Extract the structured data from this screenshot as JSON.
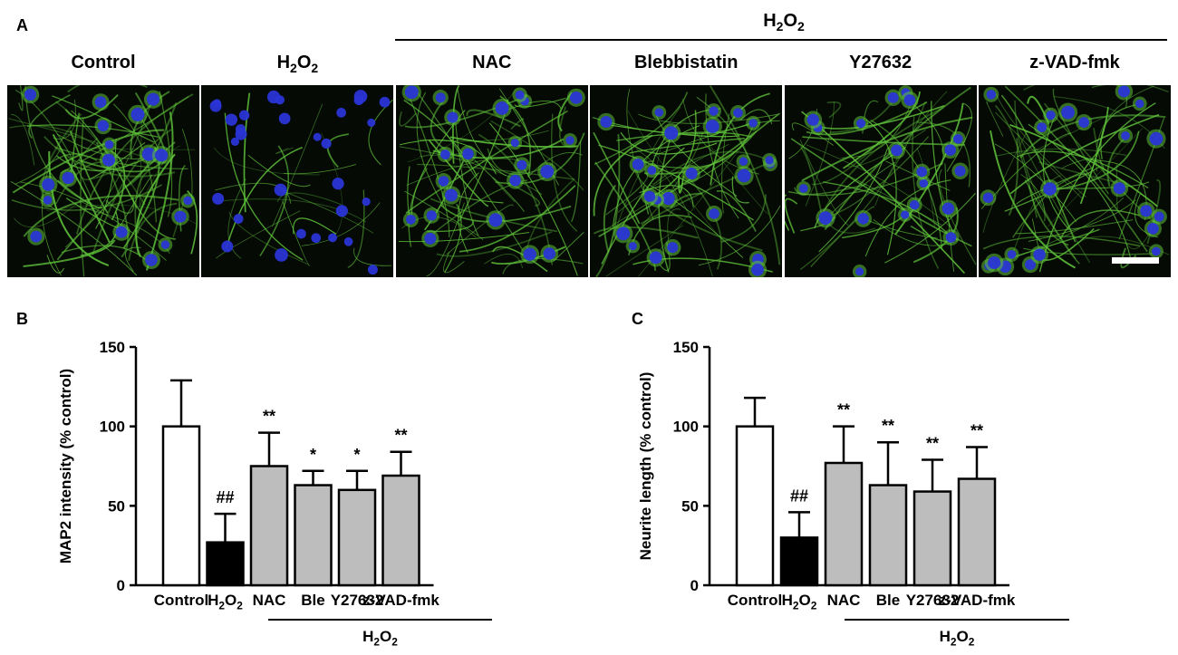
{
  "panel_a": {
    "letter": "A",
    "group_label": "H2O2",
    "images": [
      {
        "label": "Control",
        "seed": 11,
        "density": 1.0,
        "cells": 18
      },
      {
        "label": "H2O2",
        "seed": 23,
        "density": 0.25,
        "cells": 30
      },
      {
        "label": "NAC",
        "seed": 37,
        "density": 0.85,
        "cells": 22
      },
      {
        "label": "Blebbistatin",
        "seed": 41,
        "density": 0.8,
        "cells": 24
      },
      {
        "label": "Y27632",
        "seed": 53,
        "density": 0.7,
        "cells": 20
      },
      {
        "label": "z-VAD-fmk",
        "seed": 67,
        "density": 0.8,
        "cells": 22
      }
    ],
    "colors": {
      "neurite": "#5fc23a",
      "nucleus": "#2a35d6",
      "background": "#050a05",
      "scale_bar": "#ffffff"
    }
  },
  "chart_data": [
    {
      "type": "bar",
      "letter": "B",
      "categories": [
        "Control",
        "H2O2",
        "NAC",
        "Ble",
        "Y27632",
        "z-VAD-fmk"
      ],
      "values": [
        100,
        27,
        75,
        63,
        60,
        69
      ],
      "errors": [
        29,
        18,
        21,
        9,
        12,
        15
      ],
      "fills": [
        "#ffffff",
        "#000000",
        "#bdbdbd",
        "#bdbdbd",
        "#bdbdbd",
        "#bdbdbd"
      ],
      "annotations": [
        "",
        "##",
        "**",
        "*",
        "*",
        "**"
      ],
      "ylabel": "MAP2 intensity (% control)",
      "ylim": [
        0,
        150
      ],
      "yticks": [
        0,
        50,
        100,
        150
      ],
      "group_label": "H2O2",
      "grid": false
    },
    {
      "type": "bar",
      "letter": "C",
      "categories": [
        "Control",
        "H2O2",
        "NAC",
        "Ble",
        "Y27632",
        "z-VAD-fmk"
      ],
      "values": [
        100,
        30,
        77,
        63,
        59,
        67
      ],
      "errors": [
        18,
        16,
        23,
        27,
        20,
        20
      ],
      "fills": [
        "#ffffff",
        "#000000",
        "#bdbdbd",
        "#bdbdbd",
        "#bdbdbd",
        "#bdbdbd"
      ],
      "annotations": [
        "",
        "##",
        "**",
        "**",
        "**",
        "**"
      ],
      "ylabel": "Neurite length (% control)",
      "ylim": [
        0,
        150
      ],
      "yticks": [
        0,
        50,
        100,
        150
      ],
      "group_label": "H2O2",
      "grid": false
    }
  ]
}
